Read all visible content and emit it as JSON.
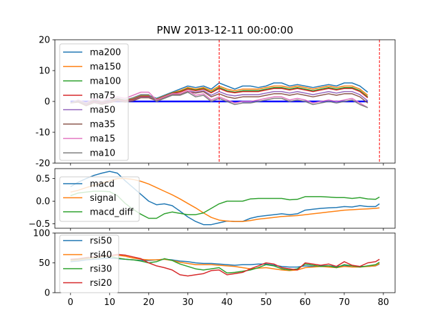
{
  "chart_data": [
    {
      "type": "line",
      "title": "PNW 2013-12-11 00:00:00",
      "xlim": [
        -4,
        83
      ],
      "ylim": [
        -20,
        20
      ],
      "yticks": [
        -20,
        -10,
        0,
        10,
        20
      ],
      "xticks": [
        0,
        10,
        20,
        30,
        40,
        50,
        60,
        70,
        80
      ],
      "legend": "upper-left",
      "vlines": [
        38,
        79
      ],
      "hline": {
        "y": 0,
        "x0": 0,
        "x1": 76,
        "color": "#0000ff"
      },
      "x": [
        0,
        2,
        4,
        6,
        8,
        10,
        12,
        14,
        16,
        18,
        20,
        22,
        24,
        26,
        28,
        30,
        32,
        34,
        36,
        38,
        40,
        42,
        44,
        46,
        48,
        50,
        52,
        54,
        56,
        58,
        60,
        62,
        64,
        66,
        68,
        70,
        72,
        74,
        76
      ],
      "series": [
        {
          "name": "ma200",
          "color": "#1f77b4",
          "values": [
            -0.5,
            0.5,
            -1,
            0,
            -0.5,
            0,
            1,
            0.5,
            1,
            2,
            2,
            1,
            2,
            3,
            4,
            5,
            4.5,
            5,
            4,
            6,
            5,
            4,
            5,
            5,
            4.5,
            5,
            6,
            6,
            5,
            5.5,
            5,
            4.5,
            5,
            5.5,
            5,
            6,
            6,
            5,
            3
          ]
        },
        {
          "name": "ma150",
          "color": "#ff7f0e",
          "values": [
            -0.5,
            0.3,
            -1,
            0,
            -0.5,
            0,
            0.8,
            0.3,
            0.8,
            1.8,
            1.8,
            0.8,
            1.8,
            2.8,
            3.5,
            4.5,
            4,
            4.5,
            3.5,
            5,
            4,
            3.5,
            4,
            4,
            4,
            4.5,
            5,
            5,
            4.5,
            5,
            4.5,
            4,
            4.5,
            5,
            4.5,
            5,
            5,
            4,
            2
          ]
        },
        {
          "name": "ma100",
          "color": "#2ca02c",
          "values": [
            -0.5,
            0.2,
            -1,
            0,
            -0.5,
            0,
            0.7,
            0.2,
            0.7,
            1.7,
            1.7,
            0.7,
            1.7,
            2.7,
            3.2,
            4.2,
            3.7,
            4.2,
            3,
            4.5,
            3.5,
            3,
            3.5,
            3.5,
            3.5,
            4,
            4.5,
            4.5,
            4,
            4.5,
            4,
            3.5,
            4,
            4.5,
            4,
            4.5,
            4.5,
            3.5,
            1.5
          ]
        },
        {
          "name": "ma75",
          "color": "#d62728",
          "values": [
            -0.5,
            0.2,
            -1,
            0,
            -0.5,
            0,
            0.6,
            0.2,
            0.6,
            1.6,
            1.6,
            0.6,
            1.6,
            2.6,
            3,
            4,
            3.5,
            4,
            2.8,
            4.2,
            3.2,
            2.8,
            3.2,
            3.2,
            3.2,
            3.7,
            4.2,
            4.2,
            3.7,
            4.2,
            3.7,
            3.2,
            3.7,
            4.2,
            3.7,
            4.2,
            4.2,
            3.2,
            1.2
          ]
        },
        {
          "name": "ma50",
          "color": "#9467bd",
          "values": [
            -0.5,
            0,
            -1.2,
            -0.2,
            -0.7,
            -0.2,
            0.4,
            0,
            0.4,
            1.4,
            1.4,
            0.4,
            1.4,
            2.4,
            2.5,
            3.5,
            3,
            3.5,
            2,
            3.2,
            2.2,
            1.8,
            2.2,
            2.2,
            2.2,
            2.7,
            3.2,
            3.2,
            2.7,
            3.2,
            2.7,
            2.2,
            2.7,
            3.2,
            2.7,
            3.2,
            3.2,
            2.2,
            0.2
          ]
        },
        {
          "name": "ma35",
          "color": "#8c564b",
          "values": [
            -0.5,
            -0.2,
            -1.4,
            -0.4,
            -0.9,
            -0.4,
            0.2,
            -0.2,
            0.2,
            1.2,
            1.2,
            0.2,
            1.2,
            2.2,
            2.2,
            3.2,
            2.7,
            3.2,
            1.5,
            2.5,
            1.5,
            1,
            1.5,
            1.5,
            1.5,
            2,
            2.5,
            2.5,
            2,
            2.5,
            2,
            1.5,
            2,
            2.5,
            2,
            2.5,
            2.5,
            1.5,
            -0.5
          ]
        },
        {
          "name": "ma15",
          "color": "#e377c2",
          "values": [
            -0.5,
            0.5,
            -0.5,
            1,
            0,
            1,
            1.5,
            1,
            2,
            3,
            3,
            0.5,
            1.5,
            2.5,
            2.5,
            3.5,
            2,
            2.5,
            0.5,
            1.5,
            0.5,
            -0.5,
            0,
            0,
            0.5,
            1,
            1.5,
            1.5,
            0.5,
            1,
            0.5,
            -0.5,
            0,
            0.5,
            0,
            0.5,
            1,
            -0.5,
            -2
          ]
        },
        {
          "name": "ma10",
          "color": "#7f7f7f",
          "values": [
            -0.5,
            0.2,
            -0.8,
            0.5,
            -0.2,
            0.5,
            1,
            0.5,
            1.2,
            2.2,
            2.2,
            0,
            1,
            2,
            2,
            3,
            1.5,
            2,
            0,
            1,
            0,
            -1,
            -0.5,
            -0.5,
            0,
            0.5,
            1,
            1,
            0,
            0.5,
            0,
            -1,
            -0.5,
            0,
            -0.5,
            0,
            0.5,
            -1,
            -2
          ]
        }
      ]
    },
    {
      "type": "line",
      "xlim": [
        -4,
        83
      ],
      "ylim": [
        -0.6,
        0.72
      ],
      "yticks": [
        -0.5,
        0.0,
        0.5
      ],
      "ytick_labels": [
        "−0.5",
        "0.0",
        "0.5"
      ],
      "legend": "upper-left",
      "series": [
        {
          "name": "macd",
          "color": "#1f77b4",
          "x": [
            0,
            2,
            4,
            6,
            8,
            10,
            12,
            14,
            16,
            18,
            20,
            22,
            24,
            26,
            28,
            30,
            32,
            34,
            36,
            38,
            40,
            42,
            44,
            46,
            48,
            50,
            52,
            54,
            56,
            58,
            60,
            62,
            64,
            66,
            68,
            70,
            72,
            74,
            76,
            78,
            79
          ],
          "values": [
            0.32,
            0.42,
            0.5,
            0.57,
            0.62,
            0.66,
            0.62,
            0.45,
            0.3,
            0.15,
            0.0,
            -0.08,
            -0.06,
            -0.1,
            -0.22,
            -0.35,
            -0.45,
            -0.52,
            -0.52,
            -0.48,
            -0.44,
            -0.45,
            -0.45,
            -0.38,
            -0.34,
            -0.32,
            -0.3,
            -0.28,
            -0.3,
            -0.28,
            -0.2,
            -0.18,
            -0.16,
            -0.15,
            -0.14,
            -0.12,
            -0.13,
            -0.1,
            -0.12,
            -0.12,
            -0.06
          ]
        },
        {
          "name": "signal",
          "color": "#ff7f0e",
          "x": [
            0,
            2,
            4,
            6,
            8,
            10,
            12,
            14,
            16,
            18,
            20,
            22,
            24,
            26,
            28,
            30,
            32,
            34,
            36,
            38,
            40,
            42,
            44,
            46,
            48,
            50,
            52,
            54,
            56,
            58,
            60,
            62,
            64,
            66,
            68,
            70,
            72,
            74,
            76,
            78,
            79
          ],
          "values": [
            0.2,
            0.24,
            0.3,
            0.35,
            0.4,
            0.45,
            0.5,
            0.5,
            0.48,
            0.44,
            0.38,
            0.3,
            0.22,
            0.14,
            0.05,
            -0.05,
            -0.15,
            -0.26,
            -0.36,
            -0.42,
            -0.44,
            -0.45,
            -0.45,
            -0.43,
            -0.4,
            -0.38,
            -0.36,
            -0.34,
            -0.33,
            -0.32,
            -0.3,
            -0.28,
            -0.26,
            -0.24,
            -0.22,
            -0.2,
            -0.19,
            -0.18,
            -0.17,
            -0.16,
            -0.15
          ]
        },
        {
          "name": "macd_diff",
          "color": "#2ca02c",
          "x": [
            0,
            2,
            4,
            6,
            8,
            10,
            12,
            14,
            16,
            18,
            20,
            22,
            24,
            26,
            28,
            30,
            32,
            34,
            36,
            38,
            40,
            42,
            44,
            46,
            48,
            50,
            52,
            54,
            56,
            58,
            60,
            62,
            64,
            66,
            68,
            70,
            72,
            74,
            76,
            78,
            79
          ],
          "values": [
            0.12,
            0.18,
            0.2,
            0.22,
            0.22,
            0.21,
            0.12,
            -0.05,
            -0.18,
            -0.29,
            -0.38,
            -0.38,
            -0.28,
            -0.24,
            -0.27,
            -0.3,
            -0.3,
            -0.26,
            -0.16,
            -0.06,
            0.0,
            0.0,
            0.0,
            0.05,
            0.06,
            0.06,
            0.06,
            0.06,
            0.03,
            0.04,
            0.1,
            0.1,
            0.1,
            0.09,
            0.08,
            0.08,
            0.06,
            0.08,
            0.05,
            0.04,
            0.09
          ]
        }
      ]
    },
    {
      "type": "line",
      "xlim": [
        -4,
        83
      ],
      "ylim": [
        0,
        100
      ],
      "yticks": [
        0,
        50,
        100
      ],
      "xticks": [
        0,
        10,
        20,
        30,
        40,
        50,
        60,
        70,
        80
      ],
      "legend": "upper-left",
      "series": [
        {
          "name": "rsi50",
          "color": "#1f77b4",
          "x": [
            0,
            2,
            4,
            6,
            8,
            10,
            12,
            14,
            16,
            18,
            20,
            22,
            24,
            26,
            28,
            30,
            32,
            34,
            36,
            38,
            40,
            42,
            44,
            46,
            48,
            50,
            52,
            54,
            56,
            58,
            60,
            62,
            64,
            66,
            68,
            70,
            72,
            74,
            76,
            78,
            79
          ],
          "values": [
            52,
            53,
            55,
            56,
            57,
            58,
            57,
            56,
            55,
            54,
            54,
            55,
            56,
            55,
            53,
            52,
            50,
            49,
            49,
            48,
            47,
            46,
            47,
            47,
            48,
            48,
            46,
            44,
            43,
            43,
            45,
            44,
            45,
            45,
            44,
            45,
            45,
            44,
            44,
            45,
            48
          ]
        },
        {
          "name": "rsi40",
          "color": "#ff7f0e",
          "x": [
            0,
            2,
            4,
            6,
            8,
            10,
            12,
            14,
            16,
            18,
            20,
            22,
            24,
            26,
            28,
            30,
            32,
            34,
            36,
            38,
            40,
            42,
            44,
            46,
            48,
            50,
            52,
            54,
            56,
            58,
            60,
            62,
            64,
            66,
            68,
            70,
            72,
            74,
            76,
            78,
            79
          ],
          "values": [
            54,
            55,
            57,
            58,
            60,
            62,
            63,
            61,
            58,
            56,
            55,
            55,
            56,
            54,
            51,
            49,
            47,
            47,
            47,
            46,
            45,
            44,
            42,
            40,
            41,
            42,
            40,
            38,
            37,
            38,
            42,
            43,
            44,
            43,
            42,
            44,
            43,
            43,
            44,
            45,
            49
          ]
        },
        {
          "name": "rsi30",
          "color": "#2ca02c",
          "x": [
            0,
            2,
            4,
            6,
            8,
            10,
            12,
            14,
            16,
            18,
            20,
            22,
            24,
            26,
            28,
            30,
            32,
            34,
            36,
            38,
            40,
            42,
            44,
            46,
            48,
            50,
            52,
            54,
            56,
            58,
            60,
            62,
            64,
            66,
            68,
            70,
            72,
            74,
            76,
            78,
            79
          ],
          "values": [
            55,
            56,
            58,
            59,
            60,
            61,
            58,
            56,
            55,
            53,
            50,
            52,
            57,
            54,
            48,
            44,
            40,
            38,
            40,
            42,
            33,
            34,
            36,
            38,
            42,
            47,
            45,
            40,
            38,
            40,
            48,
            46,
            44,
            45,
            42,
            47,
            45,
            43,
            45,
            47,
            51
          ]
        },
        {
          "name": "rsi20",
          "color": "#d62728",
          "x": [
            0,
            2,
            4,
            6,
            8,
            10,
            12,
            14,
            16,
            18,
            20,
            22,
            24,
            26,
            28,
            30,
            32,
            34,
            36,
            38,
            40,
            42,
            44,
            46,
            48,
            50,
            52,
            54,
            56,
            58,
            60,
            62,
            64,
            66,
            68,
            70,
            72,
            74,
            76,
            78,
            79
          ],
          "values": [
            56,
            57,
            59,
            60,
            61,
            62,
            64,
            63,
            60,
            57,
            50,
            45,
            42,
            38,
            30,
            28,
            30,
            32,
            37,
            38,
            30,
            32,
            34,
            40,
            45,
            50,
            48,
            42,
            40,
            38,
            50,
            48,
            46,
            48,
            44,
            52,
            46,
            44,
            50,
            52,
            56
          ]
        }
      ]
    }
  ]
}
